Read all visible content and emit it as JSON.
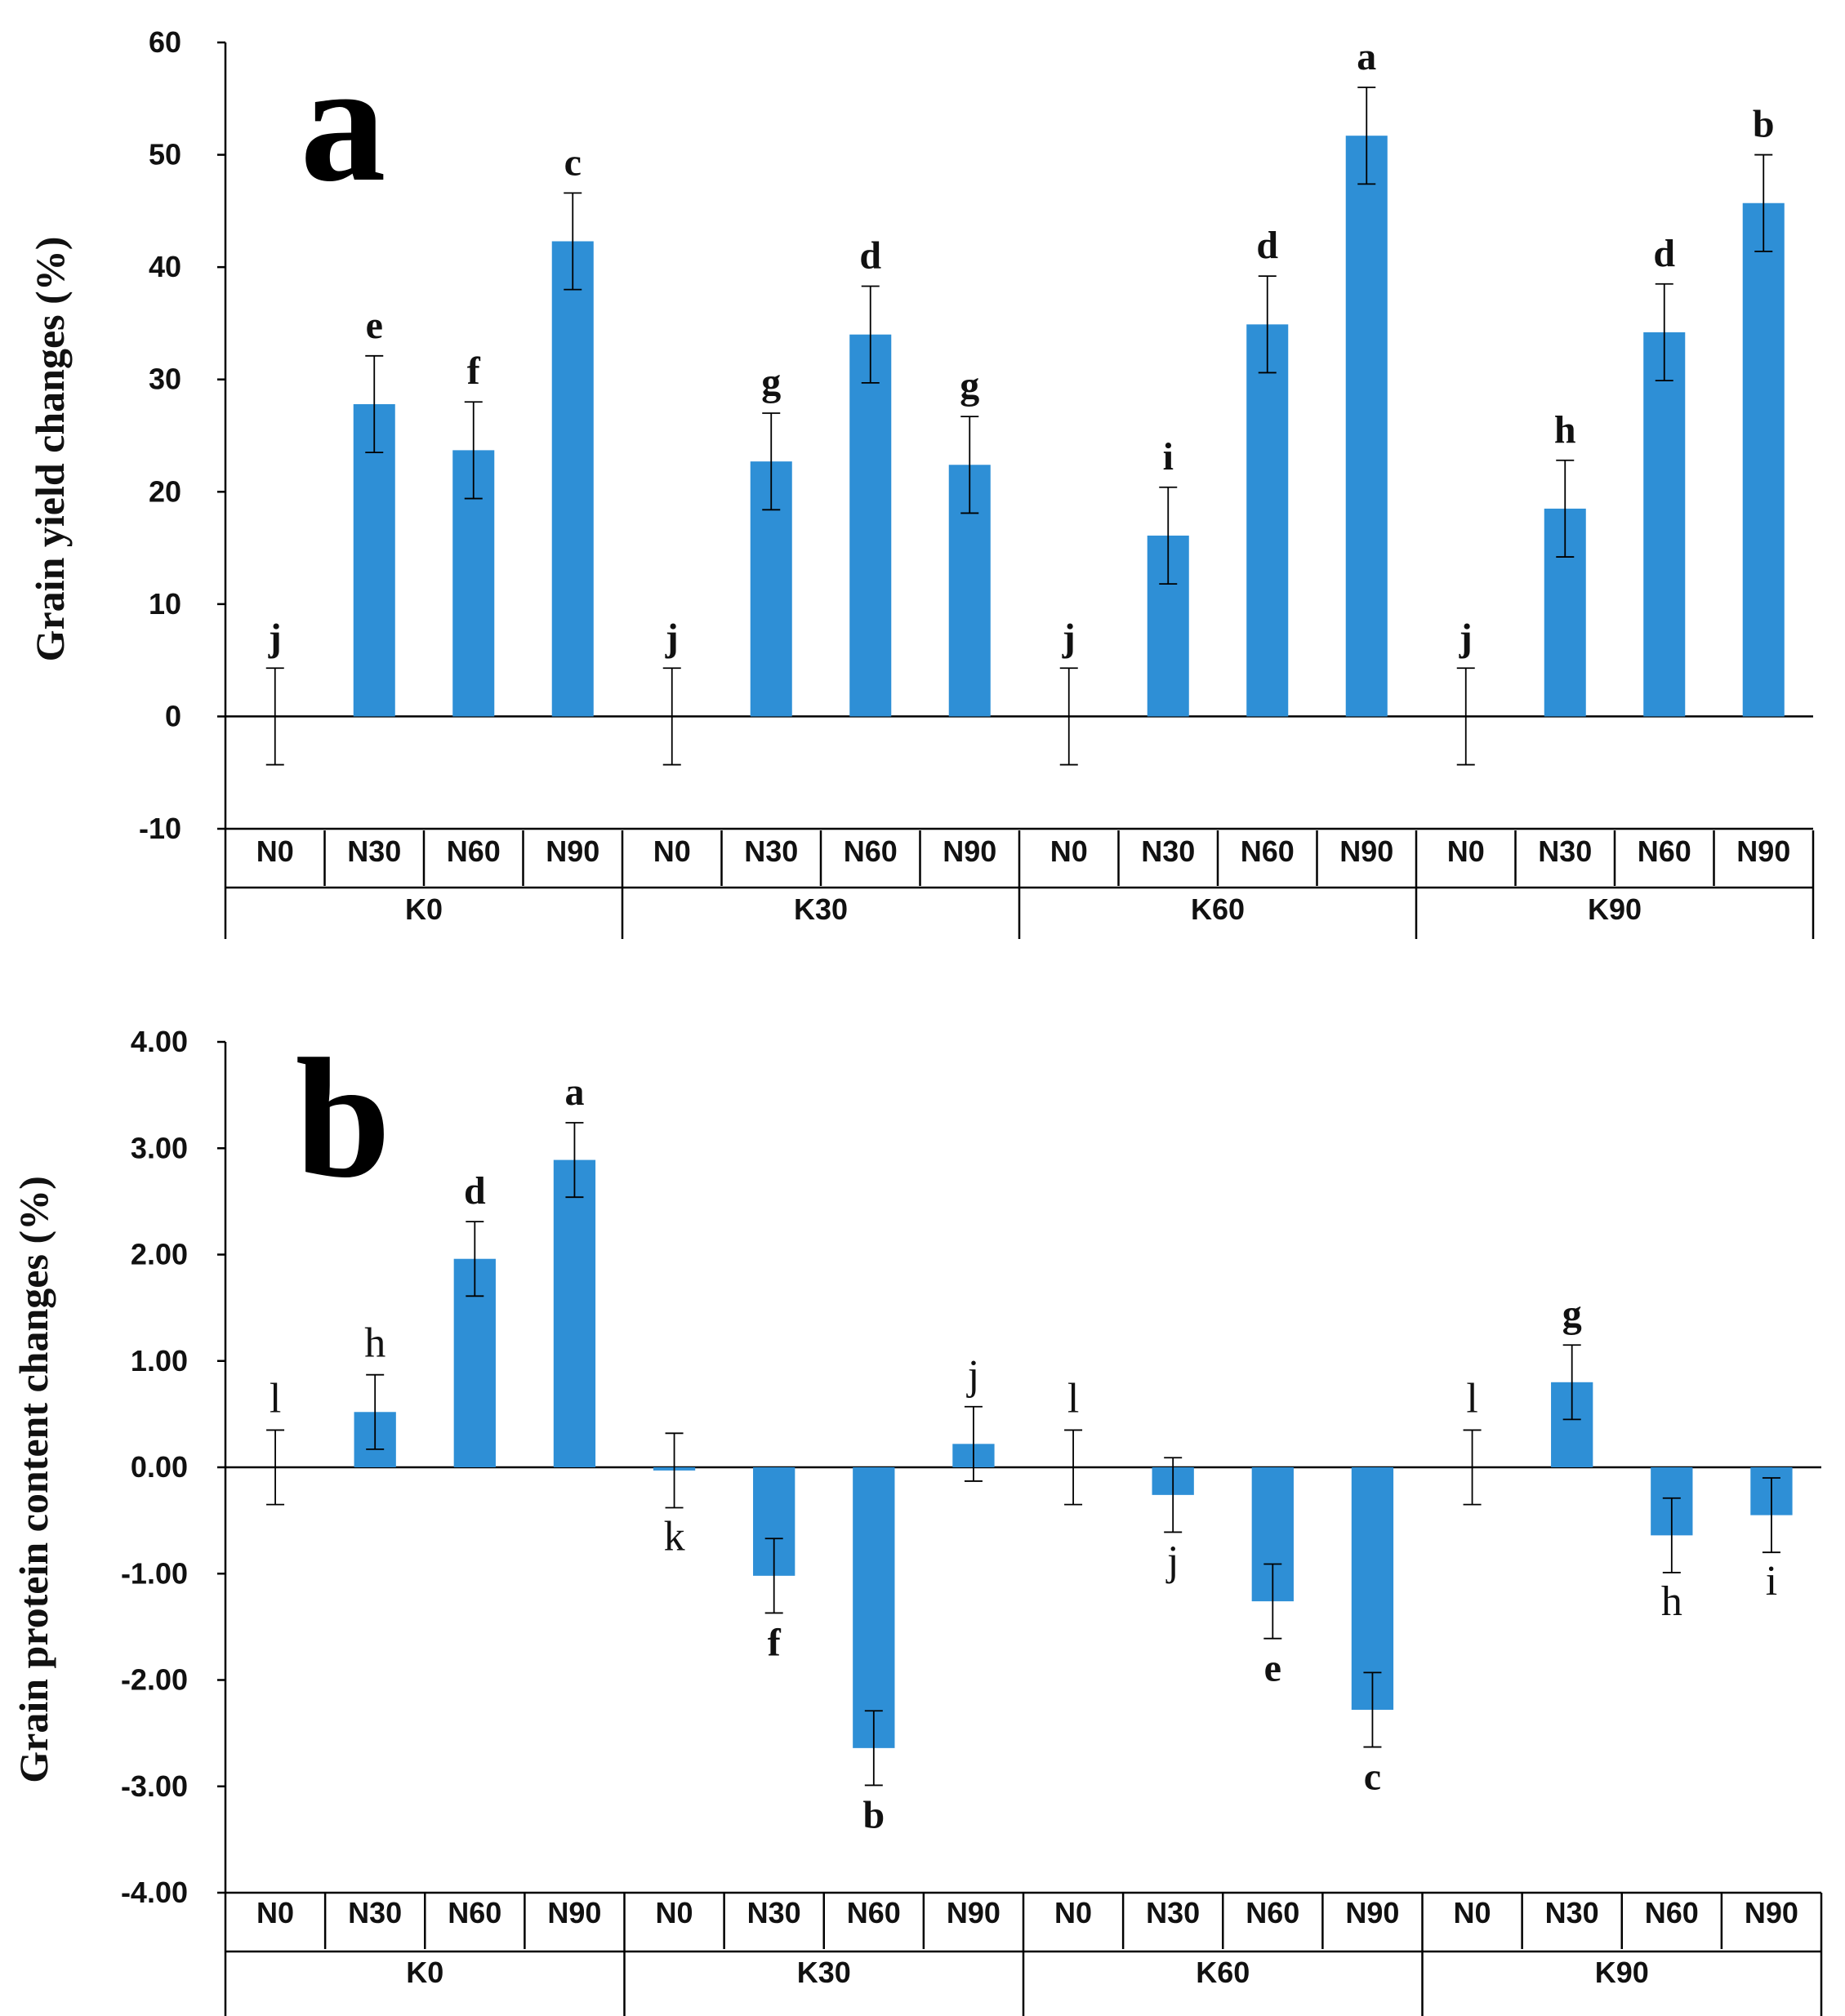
{
  "chart_data": [
    {
      "type": "bar",
      "panel_label": "a",
      "ylabel": "Grain yield changes (%)",
      "ylim": [
        -10,
        60
      ],
      "yticks": [
        "60",
        "50",
        "40",
        "30",
        "20",
        "10",
        "0",
        "-10"
      ],
      "ytick_values": [
        60,
        50,
        40,
        30,
        20,
        10,
        0,
        -10
      ],
      "bar_color": "#2e8fd6",
      "groups": [
        {
          "label": "K0",
          "categories": [
            "N0",
            "N30",
            "N60",
            "N90"
          ]
        },
        {
          "label": "K30",
          "categories": [
            "N0",
            "N30",
            "N60",
            "N90"
          ]
        },
        {
          "label": "K60",
          "categories": [
            "N0",
            "N30",
            "N60",
            "N90"
          ]
        },
        {
          "label": "K90",
          "categories": [
            "N0",
            "N30",
            "N60",
            "N90"
          ]
        }
      ],
      "values": [
        0,
        27.8,
        23.7,
        42.3,
        0,
        22.7,
        34.0,
        22.4,
        0,
        16.1,
        34.9,
        51.7,
        0,
        18.5,
        34.2,
        45.7
      ],
      "errors": [
        4.3,
        4.3,
        4.3,
        4.3,
        4.3,
        4.3,
        4.3,
        4.3,
        4.3,
        4.3,
        4.3,
        4.3,
        4.3,
        4.3,
        4.3,
        4.3
      ],
      "letters": [
        "j",
        "e",
        "f",
        "c",
        "j",
        "g",
        "d",
        "g",
        "j",
        "i",
        "d",
        "a",
        "j",
        "h",
        "d",
        "b"
      ],
      "letters_bold": true
    },
    {
      "type": "bar",
      "panel_label": "b",
      "ylabel": "Grain protein content changes (%)",
      "ylim": [
        -4,
        4
      ],
      "yticks": [
        "4.00",
        "3.00",
        "2.00",
        "1.00",
        "0.00",
        "-1.00",
        "-2.00",
        "-3.00",
        "-4.00"
      ],
      "ytick_values": [
        4,
        3,
        2,
        1,
        0,
        -1,
        -2,
        -3,
        -4
      ],
      "bar_color": "#2e8fd6",
      "groups": [
        {
          "label": "K0",
          "categories": [
            "N0",
            "N30",
            "N60",
            "N90"
          ]
        },
        {
          "label": "K30",
          "categories": [
            "N0",
            "N30",
            "N60",
            "N90"
          ]
        },
        {
          "label": "K60",
          "categories": [
            "N0",
            "N30",
            "N60",
            "N90"
          ]
        },
        {
          "label": "K90",
          "categories": [
            "N0",
            "N30",
            "N60",
            "N90"
          ]
        }
      ],
      "values": [
        0,
        0.52,
        1.96,
        2.89,
        -0.03,
        -1.02,
        -2.64,
        0.22,
        0,
        -0.26,
        -1.26,
        -2.28,
        0,
        0.8,
        -0.64,
        -0.45
      ],
      "errors": [
        0.35,
        0.35,
        0.35,
        0.35,
        0.35,
        0.35,
        0.35,
        0.35,
        0.35,
        0.35,
        0.35,
        0.35,
        0.35,
        0.35,
        0.35,
        0.35
      ],
      "letters": [
        "l",
        "h",
        "d",
        "a",
        "k",
        "f",
        "b",
        "j",
        "l",
        "j",
        "e",
        "c",
        "l",
        "g",
        "h",
        "i"
      ],
      "letters_bold": [
        false,
        false,
        true,
        true,
        false,
        true,
        true,
        false,
        false,
        false,
        true,
        true,
        false,
        true,
        false,
        false
      ]
    }
  ]
}
